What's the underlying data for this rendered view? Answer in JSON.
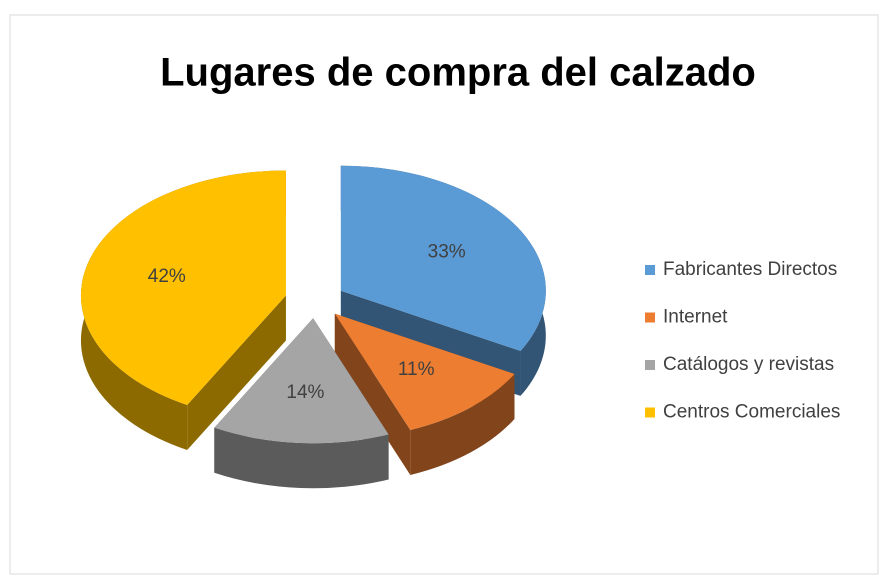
{
  "chart_data": {
    "type": "pie",
    "title": "Lugares de compra del calzado",
    "categories": [
      "Fabricantes Directos",
      "Internet",
      "Catálogos y revistas",
      "Centros Comerciales"
    ],
    "values": [
      33,
      11,
      14,
      42
    ],
    "value_labels": [
      "33%",
      "11%",
      "14%",
      "42%"
    ],
    "colors": [
      "#5b9bd5",
      "#ed7d31",
      "#a5a5a5",
      "#ffc000"
    ],
    "legend": "right"
  }
}
